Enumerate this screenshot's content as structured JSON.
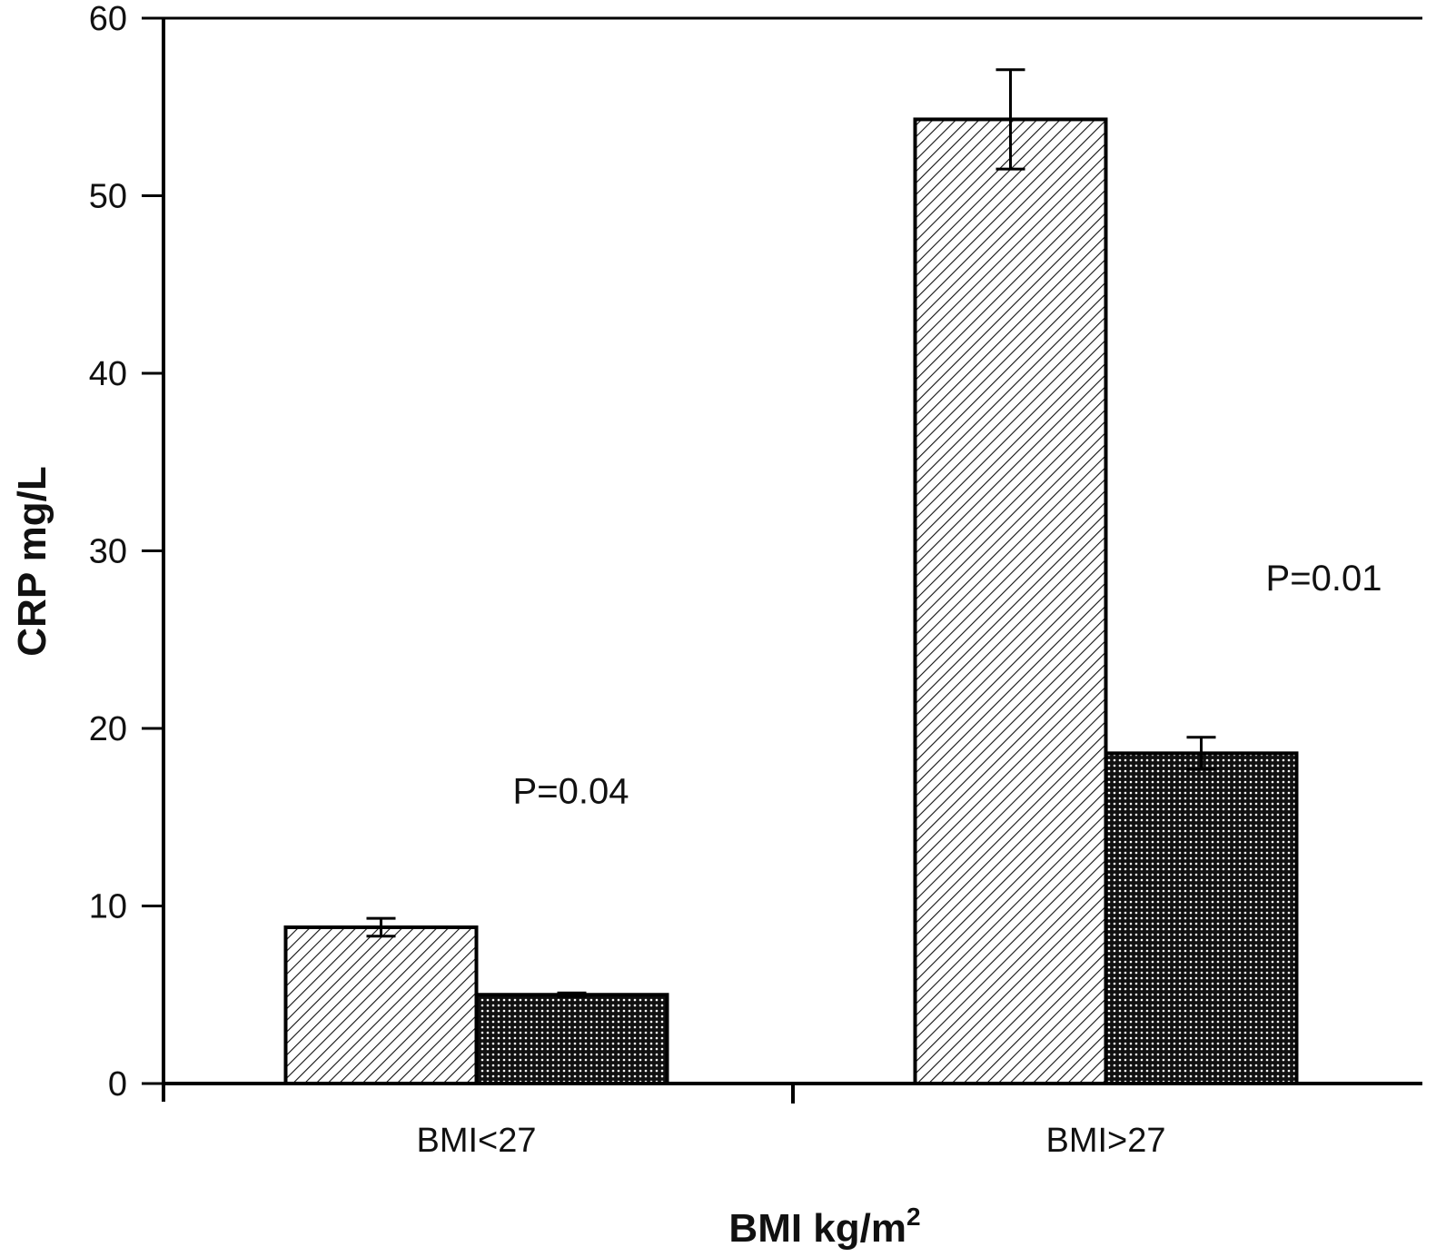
{
  "chart_data": {
    "type": "bar",
    "categories": [
      "BMI<27",
      "BMI>27"
    ],
    "series": [
      {
        "pattern": "diagonal-hatch",
        "values": [
          8.8,
          54.3
        ],
        "errors": [
          0.5,
          2.8
        ]
      },
      {
        "pattern": "dotted",
        "values": [
          5.0,
          18.6
        ],
        "errors": [
          0.1,
          0.9
        ]
      }
    ],
    "xlabel": "BMI kg/m",
    "xlabel_superscript": "2",
    "ylabel": "CRP mg/L",
    "ylim": [
      0,
      60
    ],
    "yticks": [
      "0",
      "10",
      "20",
      "30",
      "40",
      "50",
      "60"
    ],
    "annotations": [
      {
        "text": "P=0.04",
        "x_category": 0,
        "y": 16.5
      },
      {
        "text": "P=0.01",
        "x_category": 1,
        "y": 28.5
      }
    ],
    "grid": false,
    "legend": "none",
    "colors": {
      "axis": "#000000",
      "background": "#ffffff"
    }
  }
}
